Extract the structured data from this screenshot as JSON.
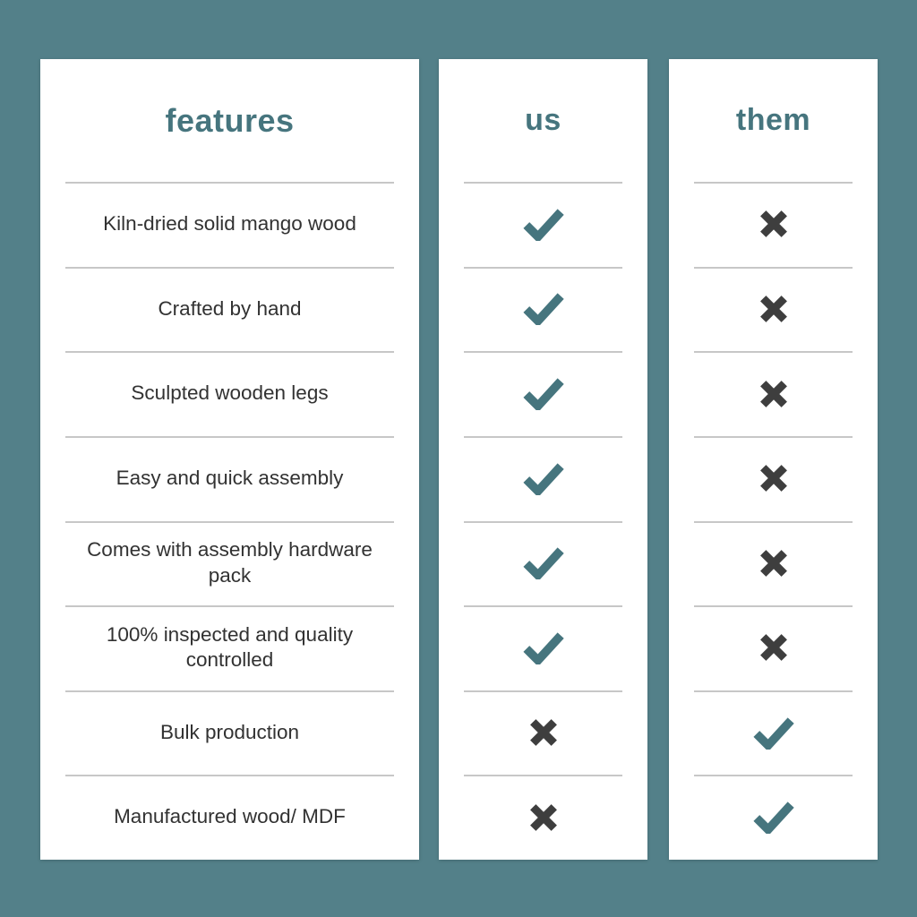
{
  "colors": {
    "background": "#538089",
    "panel": "#ffffff",
    "accent": "#46757e",
    "cross": "#3e3e3e",
    "text": "#323232",
    "divider": "#c7c7c7"
  },
  "table": {
    "columns": [
      {
        "id": "features",
        "label": "features"
      },
      {
        "id": "us",
        "label": "us"
      },
      {
        "id": "them",
        "label": "them"
      }
    ],
    "rows": [
      {
        "feature": "Kiln-dried solid mango wood",
        "us": "check",
        "them": "cross"
      },
      {
        "feature": "Crafted by hand",
        "us": "check",
        "them": "cross"
      },
      {
        "feature": "Sculpted wooden legs",
        "us": "check",
        "them": "cross"
      },
      {
        "feature": "Easy and quick assembly",
        "us": "check",
        "them": "cross"
      },
      {
        "feature": "Comes with assembly hardware pack",
        "us": "check",
        "them": "cross"
      },
      {
        "feature": "100% inspected and quality controlled",
        "us": "check",
        "them": "cross"
      },
      {
        "feature": "Bulk production",
        "us": "cross",
        "them": "check"
      },
      {
        "feature": "Manufactured wood/ MDF",
        "us": "cross",
        "them": "check"
      }
    ],
    "icons": {
      "check": "check-icon",
      "cross": "cross-icon"
    }
  }
}
